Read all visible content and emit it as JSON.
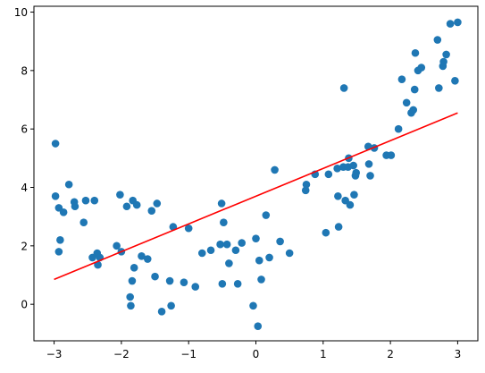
{
  "chart_data": {
    "type": "scatter",
    "title": "",
    "xlabel": "",
    "ylabel": "",
    "xlim": [
      -3.3,
      3.3
    ],
    "ylim": [
      -1.25,
      10.2
    ],
    "xticks": [
      -3,
      -2,
      -1,
      0,
      1,
      2,
      3
    ],
    "yticks": [
      0,
      2,
      4,
      6,
      8,
      10
    ],
    "grid": false,
    "legend": "none",
    "colors": {
      "points": "#1f77b4",
      "fit_line": "#ff0000",
      "axes": "#000000",
      "background": "#ffffff"
    },
    "series": [
      {
        "kind": "scatter",
        "points": [
          [
            -2.98,
            5.5
          ],
          [
            -2.98,
            3.7
          ],
          [
            -2.93,
            3.3
          ],
          [
            -2.93,
            1.8
          ],
          [
            -2.91,
            2.2
          ],
          [
            -2.86,
            3.15
          ],
          [
            -2.78,
            4.1
          ],
          [
            -2.7,
            3.5
          ],
          [
            -2.69,
            3.35
          ],
          [
            -2.56,
            2.8
          ],
          [
            -2.53,
            3.55
          ],
          [
            -2.43,
            1.6
          ],
          [
            -2.4,
            3.55
          ],
          [
            -2.36,
            1.75
          ],
          [
            -2.35,
            1.35
          ],
          [
            -2.32,
            1.6
          ],
          [
            -2.07,
            2.0
          ],
          [
            -2.02,
            3.75
          ],
          [
            -2.0,
            1.8
          ],
          [
            -1.92,
            3.35
          ],
          [
            -1.87,
            0.25
          ],
          [
            -1.86,
            -0.05
          ],
          [
            -1.84,
            0.8
          ],
          [
            -1.83,
            3.55
          ],
          [
            -1.81,
            1.25
          ],
          [
            -1.77,
            3.4
          ],
          [
            -1.7,
            1.65
          ],
          [
            -1.61,
            1.55
          ],
          [
            -1.55,
            3.2
          ],
          [
            -1.5,
            0.95
          ],
          [
            -1.47,
            3.45
          ],
          [
            -1.4,
            -0.25
          ],
          [
            -1.28,
            0.8
          ],
          [
            -1.26,
            -0.05
          ],
          [
            -1.23,
            2.65
          ],
          [
            -1.07,
            0.75
          ],
          [
            -1.0,
            2.6
          ],
          [
            -0.9,
            0.6
          ],
          [
            -0.8,
            1.75
          ],
          [
            -0.67,
            1.85
          ],
          [
            -0.53,
            2.05
          ],
          [
            -0.51,
            3.45
          ],
          [
            -0.5,
            0.7
          ],
          [
            -0.48,
            2.8
          ],
          [
            -0.43,
            2.05
          ],
          [
            -0.4,
            1.4
          ],
          [
            -0.3,
            1.85
          ],
          [
            -0.27,
            0.7
          ],
          [
            -0.21,
            2.1
          ],
          [
            -0.04,
            -0.05
          ],
          [
            0.0,
            2.25
          ],
          [
            0.03,
            -0.75
          ],
          [
            0.05,
            1.5
          ],
          [
            0.08,
            0.85
          ],
          [
            0.15,
            3.05
          ],
          [
            0.2,
            1.6
          ],
          [
            0.28,
            4.6
          ],
          [
            0.36,
            2.15
          ],
          [
            0.5,
            1.75
          ],
          [
            0.74,
            3.9
          ],
          [
            0.75,
            4.1
          ],
          [
            0.88,
            4.45
          ],
          [
            1.04,
            2.45
          ],
          [
            1.08,
            4.45
          ],
          [
            1.21,
            4.65
          ],
          [
            1.22,
            3.7
          ],
          [
            1.23,
            2.65
          ],
          [
            1.3,
            4.7
          ],
          [
            1.31,
            7.4
          ],
          [
            1.33,
            3.55
          ],
          [
            1.37,
            4.7
          ],
          [
            1.38,
            5.0
          ],
          [
            1.4,
            3.4
          ],
          [
            1.45,
            4.75
          ],
          [
            1.46,
            3.75
          ],
          [
            1.48,
            4.4
          ],
          [
            1.49,
            4.5
          ],
          [
            1.67,
            5.4
          ],
          [
            1.68,
            4.8
          ],
          [
            1.7,
            4.4
          ],
          [
            1.76,
            5.35
          ],
          [
            1.94,
            5.1
          ],
          [
            2.01,
            5.1
          ],
          [
            2.12,
            6.0
          ],
          [
            2.17,
            7.7
          ],
          [
            2.24,
            6.9
          ],
          [
            2.31,
            6.55
          ],
          [
            2.34,
            6.65
          ],
          [
            2.36,
            7.35
          ],
          [
            2.37,
            8.6
          ],
          [
            2.41,
            8.0
          ],
          [
            2.46,
            8.1
          ],
          [
            2.7,
            9.05
          ],
          [
            2.72,
            7.4
          ],
          [
            2.78,
            8.15
          ],
          [
            2.79,
            8.3
          ],
          [
            2.83,
            8.55
          ],
          [
            2.89,
            9.6
          ],
          [
            2.96,
            7.65
          ],
          [
            3.0,
            9.65
          ]
        ]
      },
      {
        "kind": "line",
        "x": [
          -3.0,
          3.0
        ],
        "y": [
          0.85,
          6.55
        ]
      }
    ]
  }
}
